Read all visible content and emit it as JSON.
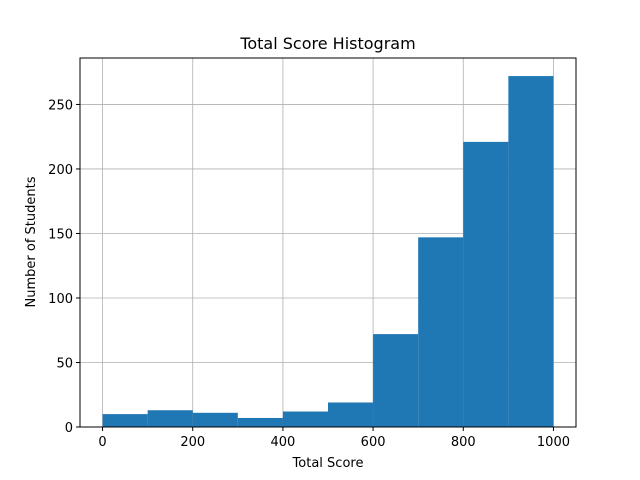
{
  "chart_data": {
    "type": "bar",
    "title": "Total Score Histogram",
    "xlabel": "Total Score",
    "ylabel": "Number of Students",
    "bins": [
      {
        "start": 0,
        "end": 100,
        "count": 10
      },
      {
        "start": 100,
        "end": 200,
        "count": 13
      },
      {
        "start": 200,
        "end": 300,
        "count": 11
      },
      {
        "start": 300,
        "end": 400,
        "count": 7
      },
      {
        "start": 400,
        "end": 500,
        "count": 12
      },
      {
        "start": 500,
        "end": 600,
        "count": 19
      },
      {
        "start": 600,
        "end": 700,
        "count": 72
      },
      {
        "start": 700,
        "end": 800,
        "count": 147
      },
      {
        "start": 800,
        "end": 900,
        "count": 221
      },
      {
        "start": 900,
        "end": 1000,
        "count": 272
      }
    ],
    "xlim": [
      -50,
      1050
    ],
    "ylim": [
      0,
      286
    ],
    "xticks": [
      0,
      200,
      400,
      600,
      800,
      1000
    ],
    "yticks": [
      0,
      50,
      100,
      150,
      200,
      250
    ],
    "xtick_labels": [
      "0",
      "200",
      "400",
      "600",
      "800",
      "1000"
    ],
    "ytick_labels": [
      "0",
      "50",
      "100",
      "150",
      "200",
      "250"
    ],
    "grid": true,
    "bar_color": "#1f77b4"
  }
}
